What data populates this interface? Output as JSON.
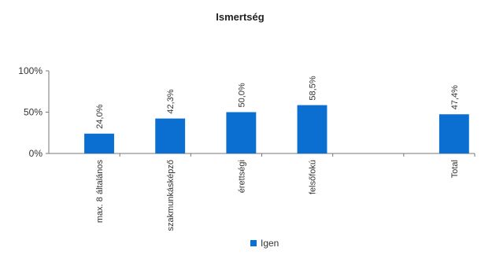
{
  "chart_data": {
    "type": "bar",
    "title": "Ismertség",
    "categories": [
      "max. 8 általános",
      "szakmunkásképző",
      "érettségi",
      "felsőfokú",
      "",
      "Total"
    ],
    "series": [
      {
        "name": "Igen",
        "values": [
          24.0,
          42.3,
          50.0,
          58.5,
          null,
          47.4
        ]
      }
    ],
    "data_labels": [
      "24,0%",
      "42,3%",
      "50,0%",
      "58,5%",
      "",
      "47,4%"
    ],
    "y_ticks": [
      "100%",
      "50%",
      "0%"
    ],
    "y_tick_values": [
      100,
      50,
      0
    ],
    "ylim": [
      0,
      100
    ],
    "grid": false,
    "legend_position": "bottom",
    "colors": {
      "bar": "#0a6fd1",
      "axis": "#777777"
    }
  }
}
